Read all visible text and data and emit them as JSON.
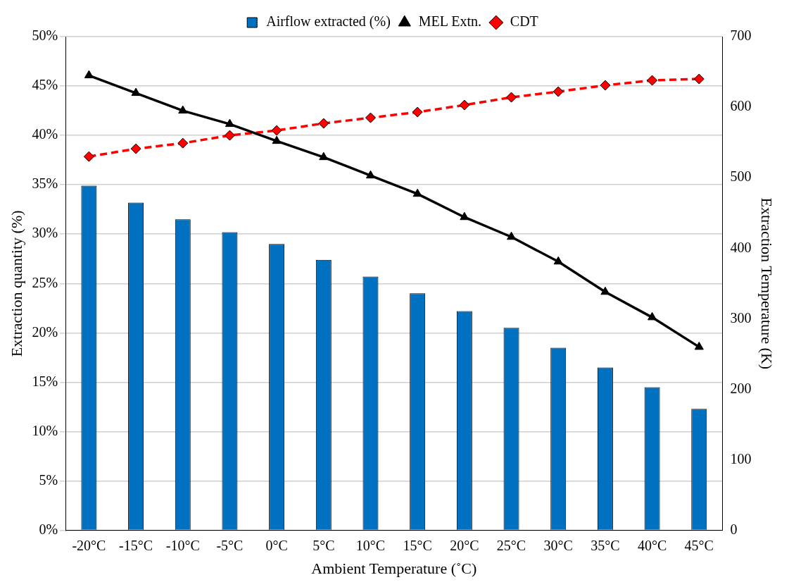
{
  "chart_data": {
    "type": "bar",
    "xlabel": "Ambient Temperature (˚C)",
    "ylabel": "Extraction quantity (%)",
    "y2label": "Extraction Temperature (K)",
    "categories": [
      "-20°C",
      "-15°C",
      "-10°C",
      "-5°C",
      "0°C",
      "5°C",
      "10°C",
      "15°C",
      "20°C",
      "25°C",
      "30°C",
      "35°C",
      "40°C",
      "45°C"
    ],
    "series": [
      {
        "name": "Airflow extracted (%)",
        "color": "#0070c0",
        "values": [
          34.9,
          33.2,
          31.5,
          30.2,
          29.0,
          27.4,
          25.7,
          24.0,
          22.2,
          20.5,
          18.5,
          16.5,
          14.5,
          12.3
        ]
      },
      {
        "name": "MEL Extn.",
        "type": "line",
        "axis": "y2",
        "color": "#000000",
        "marker": "triangle",
        "line_style": "solid",
        "values": [
          645,
          620,
          595,
          576,
          552,
          529,
          503,
          477,
          444,
          416,
          381,
          338,
          302,
          260
        ]
      },
      {
        "name": "CDT",
        "type": "line",
        "axis": "y2",
        "color": "#ff0000",
        "marker": "diamond",
        "line_style": "dashed",
        "values": [
          530,
          541,
          549,
          560,
          567,
          577,
          585,
          593,
          603,
          614,
          622,
          631,
          638,
          640
        ]
      }
    ],
    "ylim": [
      0,
      50
    ],
    "yticks": [
      {
        "value": 0,
        "label": "0%"
      },
      {
        "value": 5,
        "label": "5%"
      },
      {
        "value": 10,
        "label": "10%"
      },
      {
        "value": 15,
        "label": "15%"
      },
      {
        "value": 20,
        "label": "20%"
      },
      {
        "value": 25,
        "label": "25%"
      },
      {
        "value": 30,
        "label": "30%"
      },
      {
        "value": 35,
        "label": "35%"
      },
      {
        "value": 40,
        "label": "40%"
      },
      {
        "value": 45,
        "label": "45%"
      },
      {
        "value": 50,
        "label": "50%"
      }
    ],
    "y2lim": [
      0,
      700
    ],
    "y2ticks": [
      0,
      100,
      200,
      300,
      400,
      500,
      600,
      700
    ],
    "grid": "y",
    "legend": "top"
  }
}
